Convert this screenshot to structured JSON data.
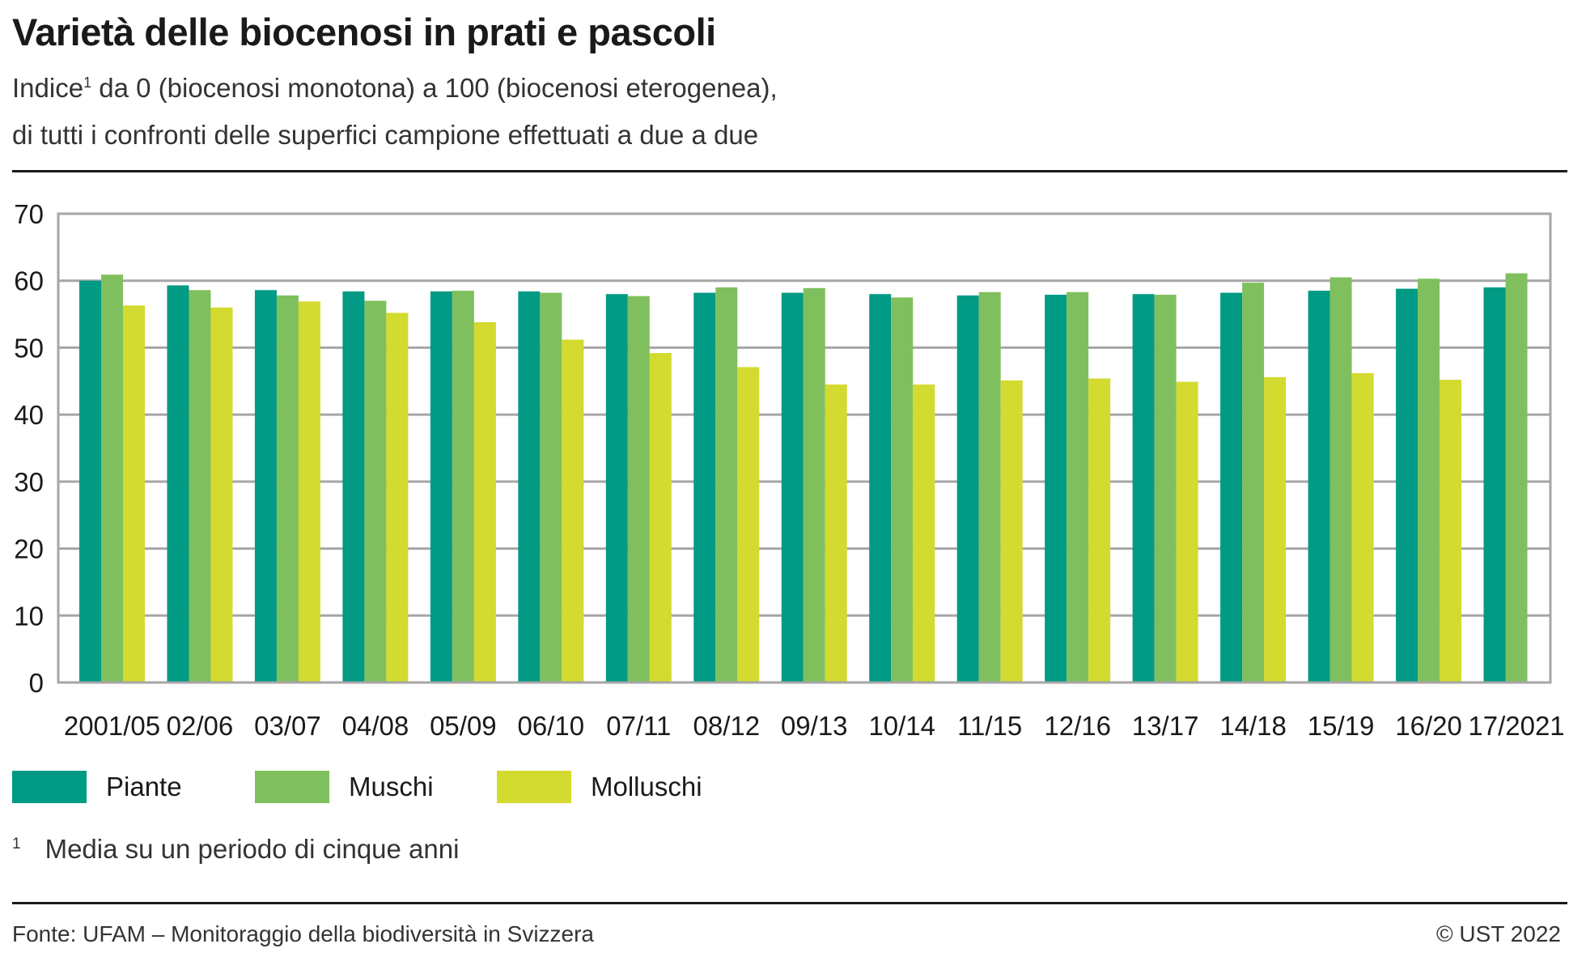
{
  "header": {
    "title": "Varietà delle biocenosi in prati e pascoli",
    "subtitle_line1_before": "Indice",
    "subtitle_line1_sup": "1",
    "subtitle_line1_after": " da 0 (biocenosi monotona) a 100 (biocenosi eterogenea),",
    "subtitle_line2": "di tutti i confronti delle superfici campione effettuati a due a due"
  },
  "footnote": {
    "mark": "1",
    "text": "Media su un periodo di cinque anni"
  },
  "footer": {
    "source": "Fonte: UFAM – Monitoraggio della biodiversità in Svizzera",
    "copyright": "© UST 2022"
  },
  "chart_data": {
    "type": "bar",
    "categories": [
      "2001/05",
      "02/06",
      "03/07",
      "04/08",
      "05/09",
      "06/10",
      "07/11",
      "08/12",
      "09/13",
      "10/14",
      "11/15",
      "12/16",
      "13/17",
      "14/18",
      "15/19",
      "16/20",
      "17/2021"
    ],
    "series": [
      {
        "name": "Piante",
        "color": "#009a85",
        "values": [
          60.0,
          59.3,
          58.6,
          58.4,
          58.4,
          58.4,
          58.0,
          58.2,
          58.2,
          58.0,
          57.8,
          57.9,
          58.0,
          58.2,
          58.5,
          58.8,
          59.0
        ]
      },
      {
        "name": "Muschi",
        "color": "#80bf5e",
        "values": [
          60.9,
          58.6,
          57.8,
          57.0,
          58.5,
          58.2,
          57.7,
          59.0,
          58.9,
          57.5,
          58.3,
          58.3,
          57.9,
          59.7,
          60.5,
          60.3,
          61.1
        ]
      },
      {
        "name": "Molluschi",
        "color": "#d3da30",
        "values": [
          56.3,
          56.0,
          56.9,
          55.2,
          53.8,
          51.2,
          49.2,
          47.1,
          44.5,
          44.5,
          45.1,
          45.4,
          44.9,
          45.6,
          46.2,
          45.2,
          null
        ]
      }
    ],
    "ylim": [
      0,
      70
    ],
    "yticks": [
      0,
      10,
      20,
      30,
      40,
      50,
      60,
      70
    ],
    "grid": true,
    "legend_position": "bottom-left",
    "xlabel": "",
    "ylabel": ""
  }
}
